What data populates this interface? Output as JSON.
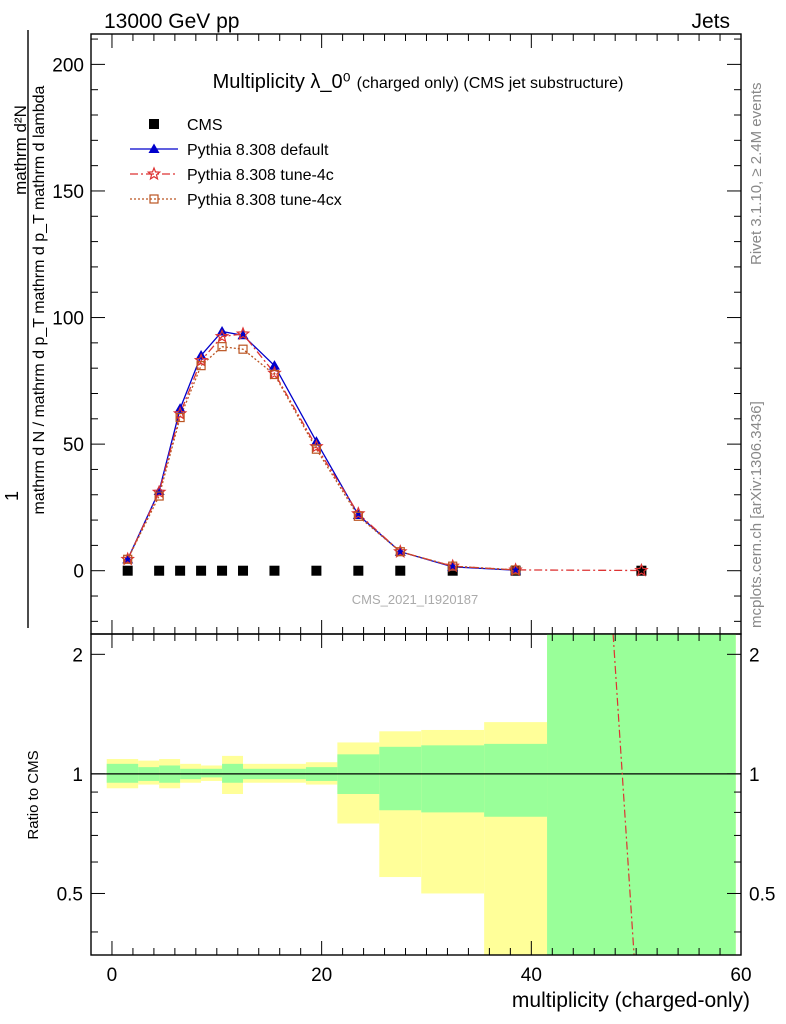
{
  "header": {
    "energy_label": "13000 GeV pp",
    "process_label": "Jets"
  },
  "side": {
    "rivet_label": "Rivet 3.1.10, ≥ 2.4M events",
    "mcplots_label": "mcplots.cern.ch [arXiv:1306.3436]"
  },
  "watermark": "CMS_2021_I1920187",
  "chart_data": [
    {
      "type": "line",
      "title": "Multiplicity λ_0⁰",
      "title_suffix": "(charged only) (CMS jet substructure)",
      "ylabel_numerator": "mathrm d²N",
      "ylabel_denominator": "mathrm d N / mathrm d p_T mathrm d p_T mathrm d lambda",
      "ylabel_one": "1",
      "xlim": [
        -2,
        60
      ],
      "ylim": [
        -25,
        212
      ],
      "yticks": [
        0,
        50,
        100,
        150,
        200
      ],
      "legend_placement": "top-left",
      "x": [
        1.5,
        4.5,
        6.5,
        8.5,
        10.5,
        12.5,
        15.5,
        19.5,
        23.5,
        27.5,
        32.5,
        38.5,
        50.5
      ],
      "series": [
        {
          "name": "CMS",
          "color": "#000000",
          "marker": "square",
          "line": "none",
          "values": [
            0,
            0,
            0,
            0,
            0,
            0,
            0,
            0,
            0,
            0,
            0,
            0,
            0
          ]
        },
        {
          "name": "Pythia 8.308 default",
          "color": "#0000cc",
          "marker": "triangle",
          "line": "solid",
          "values": [
            4.5,
            31.5,
            64,
            85,
            94.5,
            93,
            81,
            51,
            22,
            7.5,
            1.5,
            0.2,
            null
          ]
        },
        {
          "name": "Pythia 8.308 tune-4c",
          "color": "#dd3333",
          "marker": "star",
          "line": "dashdot",
          "values": [
            4.5,
            31,
            62,
            83,
            92.5,
            93.5,
            78,
            49,
            22.5,
            7.5,
            1.8,
            0.3,
            0.1
          ]
        },
        {
          "name": "Pythia 8.308 tune-4cx",
          "color": "#bb5522",
          "marker": "open-square",
          "line": "dotted",
          "values": [
            4.5,
            29.5,
            60.5,
            81,
            88.5,
            87.5,
            77.5,
            48,
            21.5,
            7.5,
            1.8,
            0.3,
            null
          ]
        }
      ]
    },
    {
      "type": "area",
      "ylabel": "Ratio to CMS",
      "xlabel": "multiplicity (charged-only)",
      "xlim": [
        -2,
        60
      ],
      "ylim": [
        0.35,
        2.25
      ],
      "yticks": [
        0.5,
        1,
        2
      ],
      "xticks": [
        0,
        20,
        40,
        60
      ],
      "reference_line": 1,
      "bands": {
        "bins": [
          [
            -0.5,
            2.5
          ],
          [
            2.5,
            4.5
          ],
          [
            4.5,
            6.5
          ],
          [
            6.5,
            8.5
          ],
          [
            8.5,
            10.5
          ],
          [
            10.5,
            12.5
          ],
          [
            12.5,
            14.5
          ],
          [
            14.5,
            18.5
          ],
          [
            18.5,
            21.5
          ],
          [
            21.5,
            25.5
          ],
          [
            25.5,
            29.5
          ],
          [
            29.5,
            35.5
          ],
          [
            35.5,
            41.5
          ],
          [
            41.5,
            59.5
          ]
        ],
        "stat_low": [
          0.95,
          0.96,
          0.95,
          0.97,
          0.98,
          0.95,
          0.97,
          0.97,
          0.96,
          0.89,
          0.81,
          0.8,
          0.78,
          0.35
        ],
        "stat_high": [
          1.06,
          1.04,
          1.05,
          1.03,
          1.03,
          1.06,
          1.03,
          1.03,
          1.04,
          1.12,
          1.17,
          1.18,
          1.19,
          2.25
        ],
        "total_low": [
          0.92,
          0.94,
          0.92,
          0.95,
          0.96,
          0.89,
          0.95,
          0.95,
          0.94,
          0.75,
          0.55,
          0.5,
          0.35,
          0.35
        ],
        "total_high": [
          1.09,
          1.08,
          1.09,
          1.06,
          1.05,
          1.11,
          1.06,
          1.06,
          1.07,
          1.2,
          1.28,
          1.29,
          1.35,
          2.25
        ],
        "stat_color": "#99ff99",
        "total_color": "#ffff99"
      },
      "series": [
        {
          "name": "Pythia 8.308 tune-4c",
          "color": "#dd3333",
          "line": "dashdot",
          "x": [
            47.8,
            49.8
          ],
          "values": [
            2.25,
            0.35
          ]
        }
      ]
    }
  ]
}
